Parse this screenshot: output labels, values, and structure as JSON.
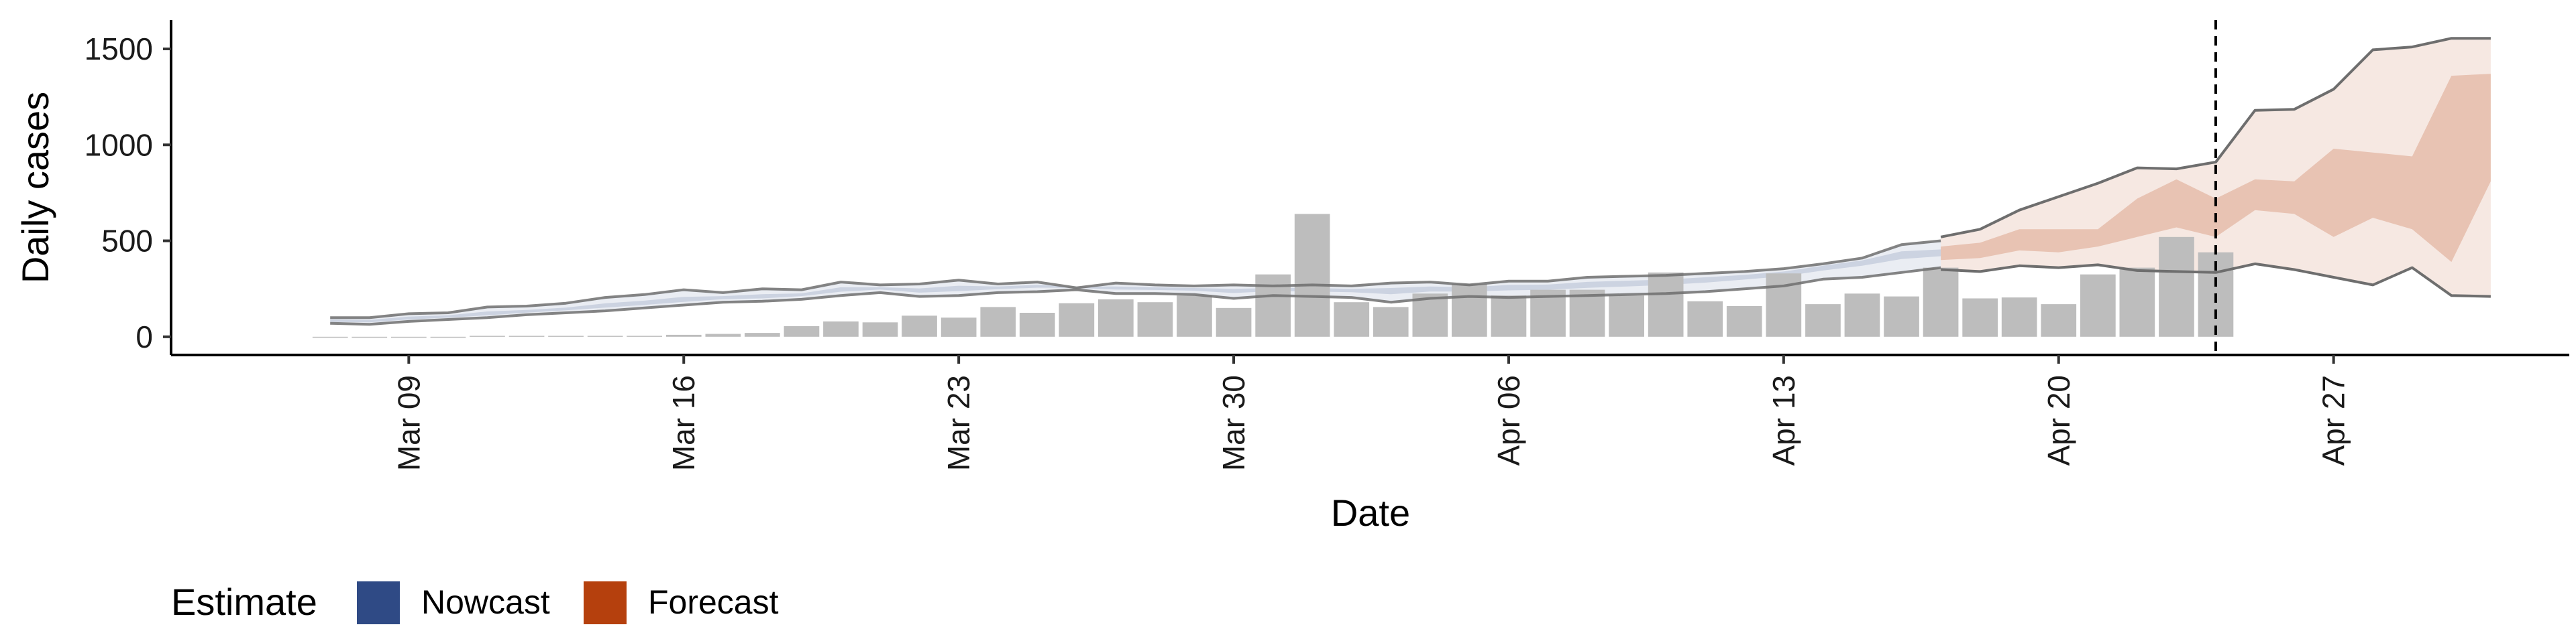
{
  "chart_data": {
    "type": "bar+ribbon",
    "xlabel": "Date",
    "ylabel": "Daily cases",
    "ylim": [
      -60,
      1650
    ],
    "y_ticks": [
      0,
      500,
      1000,
      1500
    ],
    "y_tick_labels": [
      "0",
      "500",
      "1000",
      "1500"
    ],
    "x_ticks": [
      "2020-03-09",
      "2020-03-16",
      "2020-03-23",
      "2020-03-30",
      "2020-04-06",
      "2020-04-13",
      "2020-04-20",
      "2020-04-27"
    ],
    "x_tick_labels": [
      "Mar 09",
      "Mar 16",
      "Mar 23",
      "Mar 30",
      "Apr 06",
      "Apr 13",
      "Apr 20",
      "Apr 27"
    ],
    "xlim": [
      "2020-03-03",
      "2020-05-03"
    ],
    "reference_line_date": "2020-04-24",
    "colors": {
      "bars": "#bdbdbd",
      "nowcast": "#2f4a85",
      "forecast": "#b5400d",
      "outer_line": "#6e6e6e",
      "reference_line": "#000000"
    },
    "observed_cases": {
      "start_date": "2020-03-07",
      "values": [
        0,
        0,
        0,
        0,
        5,
        5,
        5,
        5,
        5,
        10,
        15,
        20,
        55,
        80,
        75,
        110,
        100,
        155,
        125,
        175,
        195,
        180,
        215,
        150,
        325,
        640,
        180,
        155,
        225,
        275,
        215,
        245,
        245,
        215,
        335,
        185,
        160,
        330,
        170,
        225,
        210,
        360,
        200,
        205,
        170,
        325,
        360,
        520,
        440
      ]
    },
    "nowcast": {
      "start_date": "2020-03-07",
      "lower_90": [
        70,
        65,
        80,
        90,
        100,
        115,
        125,
        135,
        150,
        165,
        180,
        185,
        195,
        215,
        230,
        210,
        215,
        230,
        235,
        245,
        225,
        225,
        220,
        200,
        215,
        210,
        205,
        180,
        200,
        210,
        205,
        210,
        215,
        220,
        225,
        235,
        250,
        265,
        300,
        310,
        335,
        360
      ],
      "upper_90": [
        100,
        100,
        120,
        125,
        155,
        160,
        175,
        205,
        220,
        245,
        230,
        250,
        245,
        285,
        270,
        275,
        295,
        275,
        285,
        255,
        280,
        270,
        265,
        270,
        265,
        270,
        265,
        280,
        285,
        270,
        290,
        290,
        310,
        315,
        320,
        330,
        340,
        355,
        380,
        410,
        480,
        500
      ],
      "lower_50": [
        78,
        75,
        90,
        100,
        112,
        126,
        138,
        152,
        166,
        182,
        196,
        200,
        212,
        235,
        246,
        230,
        238,
        248,
        256,
        255,
        246,
        244,
        240,
        228,
        238,
        236,
        232,
        222,
        236,
        236,
        242,
        245,
        255,
        262,
        270,
        282,
        298,
        315,
        345,
        370,
        405,
        420
      ],
      "upper_50": [
        90,
        88,
        105,
        112,
        132,
        140,
        152,
        174,
        188,
        208,
        212,
        222,
        226,
        258,
        258,
        252,
        266,
        262,
        270,
        262,
        262,
        258,
        254,
        250,
        254,
        254,
        250,
        254,
        262,
        258,
        270,
        272,
        286,
        292,
        298,
        310,
        322,
        340,
        370,
        398,
        445,
        455
      ]
    },
    "forecast": {
      "start_date": "2020-04-17",
      "lower_90": [
        350,
        340,
        370,
        360,
        375,
        345,
        340,
        335,
        380,
        350,
        310,
        270,
        360,
        215,
        210
      ],
      "upper_90": [
        520,
        560,
        660,
        730,
        800,
        880,
        875,
        910,
        1180,
        1185,
        1290,
        1495,
        1510,
        1555,
        1555
      ],
      "lower_50": [
        400,
        410,
        450,
        440,
        470,
        520,
        570,
        520,
        660,
        640,
        520,
        620,
        560,
        390,
        810
      ],
      "upper_50": [
        470,
        490,
        560,
        560,
        560,
        720,
        820,
        720,
        820,
        810,
        980,
        960,
        940,
        1360,
        1370
      ]
    }
  },
  "legend": {
    "title": "Estimate",
    "items": [
      {
        "label": "Nowcast",
        "color": "#2f4a85"
      },
      {
        "label": "Forecast",
        "color": "#b5400d"
      }
    ]
  }
}
